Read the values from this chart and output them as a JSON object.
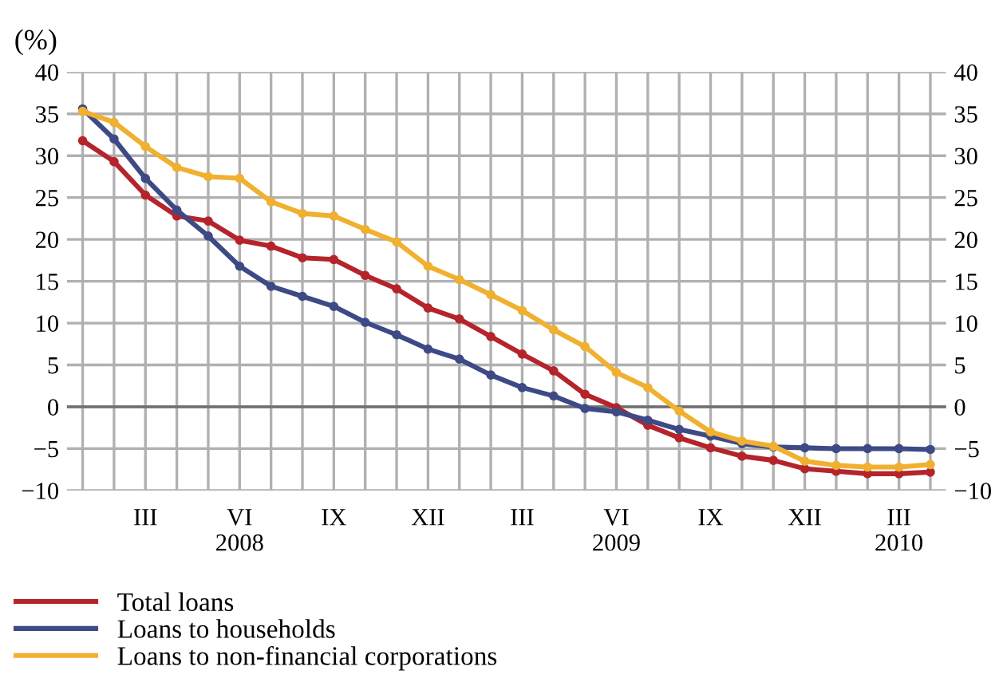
{
  "chart_data": {
    "type": "line",
    "ylabel": "(%)",
    "categories": [
      null,
      null,
      "III",
      null,
      null,
      "VI\n2008",
      null,
      null,
      "IX",
      null,
      null,
      "XII",
      null,
      null,
      "III",
      null,
      null,
      "VI\n2009",
      null,
      null,
      "IX",
      null,
      null,
      "XII",
      null,
      null,
      "III\n2010",
      null
    ],
    "series": [
      {
        "name": "Total loans",
        "color": "#b5242b",
        "values": [
          31.8,
          29.3,
          25.3,
          22.8,
          22.2,
          19.9,
          19.2,
          17.8,
          17.6,
          15.7,
          14.1,
          11.8,
          10.5,
          8.4,
          6.3,
          4.3,
          1.5,
          -0.1,
          -2.2,
          -3.7,
          -4.9,
          -5.9,
          -6.4,
          -7.4,
          -7.7,
          -8.0,
          -8.0,
          -7.8
        ]
      },
      {
        "name": "Loans to households",
        "color": "#3d4a85",
        "values": [
          35.6,
          32.0,
          27.3,
          23.5,
          20.4,
          16.8,
          14.4,
          13.2,
          12.0,
          10.1,
          8.6,
          6.9,
          5.7,
          3.8,
          2.3,
          1.3,
          -0.2,
          -0.6,
          -1.6,
          -2.7,
          -3.5,
          -4.4,
          -4.8,
          -4.9,
          -5.0,
          -5.0,
          -5.0,
          -5.1
        ]
      },
      {
        "name": "Loans to non-financial corporations",
        "color": "#f0b030",
        "values": [
          35.3,
          34.0,
          31.1,
          28.6,
          27.5,
          27.3,
          24.5,
          23.1,
          22.8,
          21.2,
          19.7,
          16.8,
          15.2,
          13.4,
          11.5,
          9.2,
          7.2,
          4.1,
          2.3,
          -0.5,
          -3.0,
          -4.1,
          -4.7,
          -6.5,
          -7.0,
          -7.2,
          -7.2,
          -6.9
        ]
      }
    ],
    "ylim": [
      -10,
      40
    ],
    "yticks": [
      -10,
      -5,
      0,
      5,
      10,
      15,
      20,
      25,
      30,
      35,
      40
    ],
    "y2lim": [
      -10,
      40
    ],
    "y2ticks": [
      -10,
      -5,
      0,
      5,
      10,
      15,
      20,
      25,
      30,
      35,
      40
    ],
    "ref_lines": [
      {
        "axis": "y",
        "value": 0,
        "color": "#707070"
      }
    ],
    "grid": true,
    "legend": "bottom left",
    "marker": "circle",
    "line_style": "solid"
  }
}
